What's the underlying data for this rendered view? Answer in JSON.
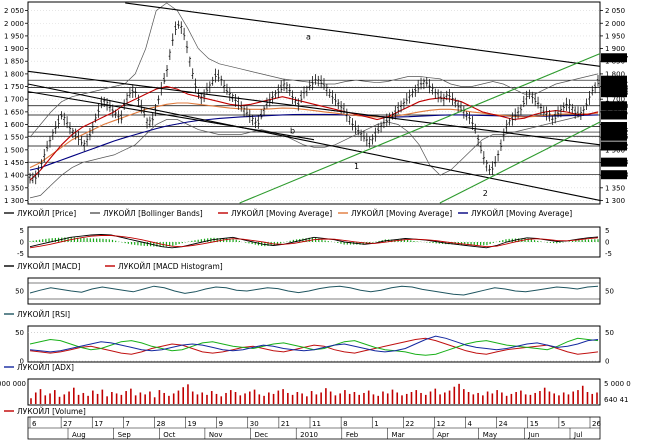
{
  "chart_data": {
    "type": "line",
    "instrument": "ЛУКОЙЛ",
    "main_panel": {
      "y_ticks": [
        1300,
        1350,
        1400,
        1450,
        1500,
        1550,
        1600,
        1650,
        1700,
        1750,
        1800,
        1850,
        1900,
        1950,
        2000,
        2050
      ],
      "y_ticks_right": [
        1300,
        1350,
        1400,
        1450,
        1500,
        1550,
        1600,
        1650,
        1700,
        1750,
        1800,
        1850,
        1900,
        1950,
        2000,
        2050
      ],
      "right_tick_labels": [
        "1 300",
        "1 350",
        "1 400",
        "1 450",
        "1 500",
        "1 550",
        "1 600",
        "1 650",
        "1 700",
        "1 750",
        "1 800",
        "1 850",
        "1 900",
        "1 950",
        "2 000",
        "2 050"
      ],
      "left_tick_labels": [
        "1 300",
        "1 350",
        "1 400",
        "1 450",
        "1 500",
        "1 550",
        "1 600",
        "1 650",
        "1 700",
        "1 750",
        "1 800",
        "1 850",
        "1 900",
        "1 950",
        "2 000",
        "2 050"
      ],
      "ylim": [
        1290,
        2080
      ],
      "price_path": [
        1395,
        1380,
        1420,
        1470,
        1520,
        1560,
        1600,
        1640,
        1610,
        1580,
        1560,
        1540,
        1520,
        1550,
        1600,
        1650,
        1700,
        1680,
        1660,
        1640,
        1620,
        1700,
        1720,
        1740,
        1690,
        1650,
        1600,
        1620,
        1680,
        1750,
        1800,
        1900,
        1980,
        2000,
        1950,
        1870,
        1780,
        1720,
        1700,
        1740,
        1760,
        1800,
        1780,
        1740,
        1720,
        1700,
        1680,
        1660,
        1640,
        1620,
        1600,
        1640,
        1680,
        1700,
        1720,
        1740,
        1760,
        1740,
        1700,
        1680,
        1720,
        1740,
        1760,
        1780,
        1770,
        1750,
        1720,
        1700,
        1680,
        1660,
        1630,
        1600,
        1580,
        1560,
        1540,
        1530,
        1560,
        1590,
        1610,
        1620,
        1640,
        1660,
        1680,
        1700,
        1720,
        1740,
        1760,
        1770,
        1750,
        1730,
        1710,
        1700,
        1720,
        1700,
        1680,
        1660,
        1640,
        1620,
        1580,
        1520,
        1460,
        1420,
        1430,
        1480,
        1540,
        1600,
        1620,
        1640,
        1660,
        1700,
        1720,
        1700,
        1680,
        1650,
        1640,
        1620,
        1640,
        1660,
        1680,
        1670,
        1650,
        1640,
        1660,
        1700,
        1740,
        1770
      ],
      "bb_upper": [
        1550,
        1600,
        1650,
        1690,
        1710,
        1720,
        1730,
        1740,
        1750,
        1760,
        1800,
        1900,
        2050,
        2080,
        2050,
        1980,
        1900,
        1860,
        1840,
        1830,
        1820,
        1810,
        1800,
        1790,
        1780,
        1775,
        1770,
        1765,
        1760,
        1760,
        1770,
        1775,
        1770,
        1765,
        1770,
        1780,
        1790,
        1790,
        1785,
        1780,
        1760,
        1750,
        1750,
        1760,
        1770,
        1760,
        1740,
        1720,
        1720,
        1740,
        1760,
        1770,
        1780,
        1790,
        1800
      ],
      "bb_lower": [
        1310,
        1320,
        1360,
        1400,
        1430,
        1450,
        1460,
        1470,
        1480,
        1500,
        1520,
        1560,
        1600,
        1620,
        1620,
        1600,
        1580,
        1570,
        1560,
        1560,
        1560,
        1570,
        1580,
        1570,
        1560,
        1540,
        1520,
        1510,
        1510,
        1520,
        1540,
        1560,
        1580,
        1600,
        1610,
        1600,
        1570,
        1520,
        1440,
        1400,
        1420,
        1460,
        1500,
        1540,
        1560,
        1560,
        1570,
        1580,
        1590,
        1600,
        1610,
        1620,
        1630,
        1640,
        1650
      ],
      "ma_fast": [
        1380,
        1420,
        1470,
        1520,
        1560,
        1590,
        1610,
        1630,
        1650,
        1680,
        1700,
        1720,
        1740,
        1750,
        1740,
        1720,
        1710,
        1700,
        1690,
        1680,
        1675,
        1680,
        1690,
        1700,
        1710,
        1700,
        1690,
        1680,
        1670,
        1660,
        1650,
        1640,
        1630,
        1620,
        1630,
        1650,
        1670,
        1690,
        1700,
        1705,
        1700,
        1690,
        1670,
        1650,
        1640,
        1630,
        1620,
        1625,
        1640,
        1650,
        1655,
        1650,
        1640,
        1640,
        1650
      ],
      "ma_mid": [
        1430,
        1450,
        1480,
        1510,
        1540,
        1560,
        1580,
        1600,
        1615,
        1630,
        1645,
        1660,
        1670,
        1680,
        1685,
        1685,
        1680,
        1675,
        1670,
        1665,
        1662,
        1660,
        1660,
        1662,
        1665,
        1664,
        1660,
        1655,
        1650,
        1645,
        1640,
        1636,
        1632,
        1630,
        1630,
        1635,
        1642,
        1650,
        1656,
        1660,
        1660,
        1656,
        1650,
        1645,
        1640,
        1636,
        1632,
        1630,
        1632,
        1636,
        1640,
        1642,
        1642,
        1642,
        1645
      ],
      "ma_slow": [
        1420,
        1430,
        1445,
        1460,
        1475,
        1490,
        1505,
        1520,
        1535,
        1548,
        1560,
        1572,
        1584,
        1594,
        1602,
        1610,
        1616,
        1620,
        1624,
        1627,
        1630,
        1632,
        1634,
        1636,
        1638,
        1639,
        1640,
        1640,
        1640,
        1639,
        1638,
        1636,
        1634,
        1632,
        1630,
        1630,
        1631,
        1633,
        1635,
        1637,
        1638,
        1638,
        1637,
        1636,
        1635,
        1634,
        1633,
        1632,
        1632,
        1633,
        1634,
        1635,
        1636,
        1637,
        1638
      ],
      "horizontal_levels": [
        {
          "value": 1775.1,
          "label": "1775.1"
        },
        {
          "value": 1745.8,
          "label": "1745.8"
        },
        {
          "value": 1725.8,
          "label": "1725.8"
        },
        {
          "value": 1674.0,
          "label": "1674.0"
        },
        {
          "value": 1637.7,
          "label": "1637.7"
        },
        {
          "value": 1592.1,
          "label": "1592.1"
        },
        {
          "value": 1570.2,
          "label": "1570.2"
        },
        {
          "value": 1553.6,
          "label": "1553.6"
        },
        {
          "value": 1515.2,
          "label": "1515.2"
        },
        {
          "value": 1451.3,
          "label": "1451.3"
        },
        {
          "value": 1401.8,
          "label": "1401.8"
        }
      ],
      "top_value_label": "1861.7",
      "trendline_labels": [
        "a",
        "b",
        "1",
        "2"
      ],
      "legend": [
        "ЛУКОЙЛ [Price]",
        "ЛУКОЙЛ [Bollinger Bands]",
        "ЛУКОЙЛ [Moving Average]",
        "ЛУКОЙЛ [Moving Average]",
        "ЛУКОЙЛ [Moving Average]"
      ]
    },
    "macd_panel": {
      "left_ticks": [
        "5",
        "0",
        "-5"
      ],
      "right_ticks": [
        "5",
        "0",
        "-5"
      ],
      "tick_values": [
        5,
        0,
        -5
      ],
      "ylim": [
        -6,
        6
      ],
      "macd": [
        -2,
        -1,
        0,
        1,
        2,
        2.5,
        3,
        3.2,
        3,
        2,
        1,
        0,
        -1,
        -2,
        -2.5,
        -2,
        -1,
        0,
        1,
        1.5,
        2,
        1,
        0,
        -1,
        -1.5,
        -1,
        0,
        1,
        2,
        1.5,
        1,
        0,
        -0.5,
        -1,
        -0.5,
        0.5,
        1,
        1.5,
        1.2,
        0.8,
        0.2,
        -0.5,
        -1,
        -1.5,
        -2,
        -2.5,
        -1.5,
        0,
        1,
        1.8,
        1.5,
        0.8,
        0.2,
        0.5,
        1.2,
        1.8,
        2.2
      ],
      "signal": [
        -2.5,
        -1.8,
        -1,
        0,
        1,
        1.8,
        2.5,
        2.8,
        2.8,
        2.4,
        1.8,
        1,
        0,
        -1,
        -1.8,
        -2,
        -1.5,
        -0.8,
        0,
        0.8,
        1.4,
        1.2,
        0.6,
        0,
        -0.8,
        -1,
        -0.6,
        0.2,
        1,
        1.3,
        1.2,
        0.7,
        0.1,
        -0.4,
        -0.6,
        -0.1,
        0.5,
        1,
        1.2,
        1,
        0.6,
        0,
        -0.5,
        -1,
        -1.5,
        -2,
        -1.8,
        -0.8,
        0.2,
        1.1,
        1.4,
        1.1,
        0.6,
        0.5,
        0.9,
        1.4,
        1.8
      ],
      "legend": [
        "ЛУКОЙЛ [MACD]",
        "ЛУКОЙЛ [MACD Histogram]"
      ]
    },
    "rsi_panel": {
      "left_ticks": [
        "50"
      ],
      "right_ticks": [
        "50"
      ],
      "tick_values": [
        50
      ],
      "ylim": [
        20,
        80
      ],
      "rsi": [
        45,
        52,
        58,
        54,
        50,
        47,
        55,
        60,
        56,
        52,
        48,
        55,
        62,
        58,
        50,
        44,
        48,
        55,
        60,
        58,
        52,
        50,
        54,
        58,
        56,
        50,
        46,
        50,
        56,
        60,
        62,
        58,
        52,
        48,
        52,
        58,
        62,
        60,
        54,
        50,
        46,
        42,
        40,
        46,
        52,
        58,
        55,
        50,
        48,
        52,
        56,
        60,
        58,
        55,
        60,
        62
      ],
      "legend": [
        "ЛУКОЙЛ [RSI]"
      ]
    },
    "adx_panel": {
      "left_ticks": [
        "50",
        "0"
      ],
      "right_ticks": [
        "50",
        "0"
      ],
      "tick_values": [
        50,
        0
      ],
      "ylim": [
        0,
        60
      ],
      "adx": [
        20,
        18,
        16,
        18,
        22,
        26,
        30,
        34,
        32,
        28,
        24,
        20,
        18,
        20,
        24,
        28,
        30,
        28,
        24,
        20,
        18,
        20,
        24,
        28,
        26,
        22,
        20,
        18,
        20,
        24,
        28,
        30,
        26,
        22,
        18,
        16,
        18,
        22,
        30,
        38,
        44,
        40,
        34,
        28,
        24,
        22,
        20,
        22,
        26,
        30,
        32,
        28,
        24,
        26,
        30,
        36,
        38
      ],
      "di_plus": [
        30,
        34,
        38,
        36,
        30,
        24,
        20,
        22,
        28,
        34,
        36,
        32,
        26,
        22,
        18,
        20,
        26,
        32,
        34,
        30,
        26,
        24,
        22,
        26,
        30,
        32,
        28,
        24,
        20,
        22,
        28,
        34,
        36,
        30,
        24,
        20,
        18,
        16,
        12,
        10,
        12,
        18,
        24,
        30,
        34,
        36,
        32,
        28,
        26,
        24,
        22,
        20,
        26,
        34,
        40,
        38,
        36
      ],
      "di_minus": [
        18,
        16,
        14,
        16,
        20,
        24,
        26,
        22,
        18,
        14,
        12,
        16,
        22,
        26,
        30,
        28,
        22,
        16,
        14,
        16,
        20,
        24,
        26,
        22,
        18,
        16,
        20,
        24,
        28,
        26,
        20,
        16,
        14,
        18,
        22,
        26,
        30,
        34,
        38,
        40,
        36,
        30,
        24,
        18,
        14,
        12,
        16,
        20,
        22,
        24,
        26,
        28,
        22,
        16,
        12,
        14,
        16
      ],
      "legend": [
        "ЛУКОЙЛ [ADX]"
      ]
    },
    "volume_panel": {
      "left_ticks": [
        "000 000",
        "0"
      ],
      "right_ticks": [
        "5 000 0",
        "640 41"
      ],
      "ylim": [
        0,
        5000000
      ],
      "volumes": [
        1.2,
        2.4,
        3.1,
        1.8,
        2.2,
        2.9,
        1.5,
        2.0,
        2.6,
        3.4,
        1.9,
        2.3,
        1.7,
        2.8,
        2.1,
        3.0,
        1.6,
        2.5,
        2.2,
        1.9,
        2.7,
        3.2,
        1.8,
        2.4,
        2.0,
        2.6,
        1.4,
        2.9,
        2.3,
        1.7,
        2.2,
        2.8,
        3.5,
        4.1,
        2.6,
        2.0,
        2.4,
        1.9,
        2.7,
        2.1,
        1.6,
        2.3,
        2.9,
        2.5,
        1.8,
        2.2,
        2.6,
        3.0,
        2.0,
        1.7,
        2.4,
        2.1,
        2.8,
        3.1,
        2.3,
        1.9,
        2.5,
        2.2,
        1.6,
        2.7,
        2.0,
        2.4,
        3.3,
        2.6,
        1.8,
        2.2,
        2.9,
        2.1,
        2.5,
        1.9,
        2.3,
        2.8,
        2.0,
        1.7,
        2.6,
        2.2,
        3.0,
        2.4,
        1.8,
        2.1,
        2.5,
        2.9,
        2.3,
        1.9,
        2.6,
        3.2,
        2.0,
        2.4,
        2.8,
        3.6,
        4.2,
        3.1,
        2.5,
        2.0,
        2.3,
        1.8,
        2.6,
        2.2,
        2.9,
        2.4,
        1.7,
        2.1,
        2.5,
        2.8,
        2.0,
        1.9,
        2.3,
        2.7,
        3.4,
        2.6,
        2.2,
        1.8,
        2.4,
        2.0,
        2.6,
        2.9,
        3.8,
        2.5,
        2.1,
        2.4
      ],
      "legend": [
        "ЛУКОЙЛ [Volume]"
      ]
    },
    "x_axis": {
      "day_labels": [
        "6",
        "27",
        "17",
        "7",
        "28",
        "19",
        "9",
        "30",
        "21",
        "11",
        "8",
        "1",
        "22",
        "12",
        "4",
        "24",
        "15",
        "5",
        "26"
      ],
      "month_labels": [
        "Aug",
        "Sep",
        "Oct",
        "Nov",
        "Dec",
        "2010",
        "Feb",
        "Mar",
        "Apr",
        "May",
        "Jun",
        "Jul"
      ]
    },
    "colors": {
      "price": "#111111",
      "bollinger": "#555555",
      "ma_fast": "#c00000",
      "ma_mid": "#e07a3c",
      "ma_slow": "#000080",
      "trend_black": "#000000",
      "trend_green": "#2e9b2e",
      "macd_line": "#000000",
      "macd_signal": "#c00000",
      "macd_hist": "#18a818",
      "rsi": "#1f5560",
      "adx_blue": "#1428a0",
      "adx_green": "#18b018",
      "adx_red": "#c01010",
      "volume": "#c00000",
      "level_box": "#000000"
    }
  }
}
